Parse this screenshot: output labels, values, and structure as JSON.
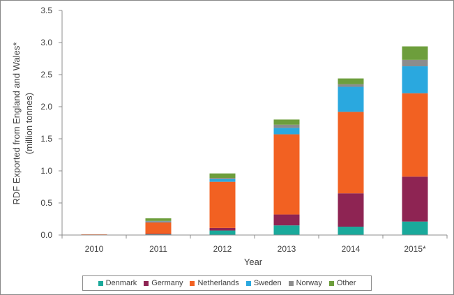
{
  "chart_data": {
    "type": "bar",
    "stacked": true,
    "title": "",
    "xlabel": "Year",
    "ylabel": "RDF Exported from England and Wales*",
    "ylabel_line2": "(million tonnes)",
    "ylim": [
      0,
      3.5
    ],
    "yticks": [
      "0.0",
      "0.5",
      "1.0",
      "1.5",
      "2.0",
      "2.5",
      "3.0",
      "3.5"
    ],
    "ytick_values": [
      0,
      0.5,
      1.0,
      1.5,
      2.0,
      2.5,
      3.0,
      3.5
    ],
    "grid": false,
    "legend_position": "bottom",
    "categories": [
      "2010",
      "2011",
      "2012",
      "2013",
      "2014",
      "2015*"
    ],
    "series": [
      {
        "name": "Denmark",
        "color": "#1aa99b",
        "values": [
          0.0,
          0.01,
          0.07,
          0.15,
          0.13,
          0.21
        ]
      },
      {
        "name": "Germany",
        "color": "#8e2453",
        "values": [
          0.0,
          0.01,
          0.04,
          0.17,
          0.52,
          0.7
        ]
      },
      {
        "name": "Netherlands",
        "color": "#f26122",
        "values": [
          0.01,
          0.18,
          0.72,
          1.25,
          1.27,
          1.3
        ]
      },
      {
        "name": "Sweden",
        "color": "#2aa8df",
        "values": [
          0.0,
          0.01,
          0.04,
          0.1,
          0.39,
          0.42
        ]
      },
      {
        "name": "Norway",
        "color": "#8c8c8c",
        "values": [
          0.0,
          0.01,
          0.02,
          0.05,
          0.04,
          0.1
        ]
      },
      {
        "name": "Other",
        "color": "#6d9e3c",
        "values": [
          0.0,
          0.04,
          0.07,
          0.08,
          0.09,
          0.21
        ]
      }
    ]
  }
}
